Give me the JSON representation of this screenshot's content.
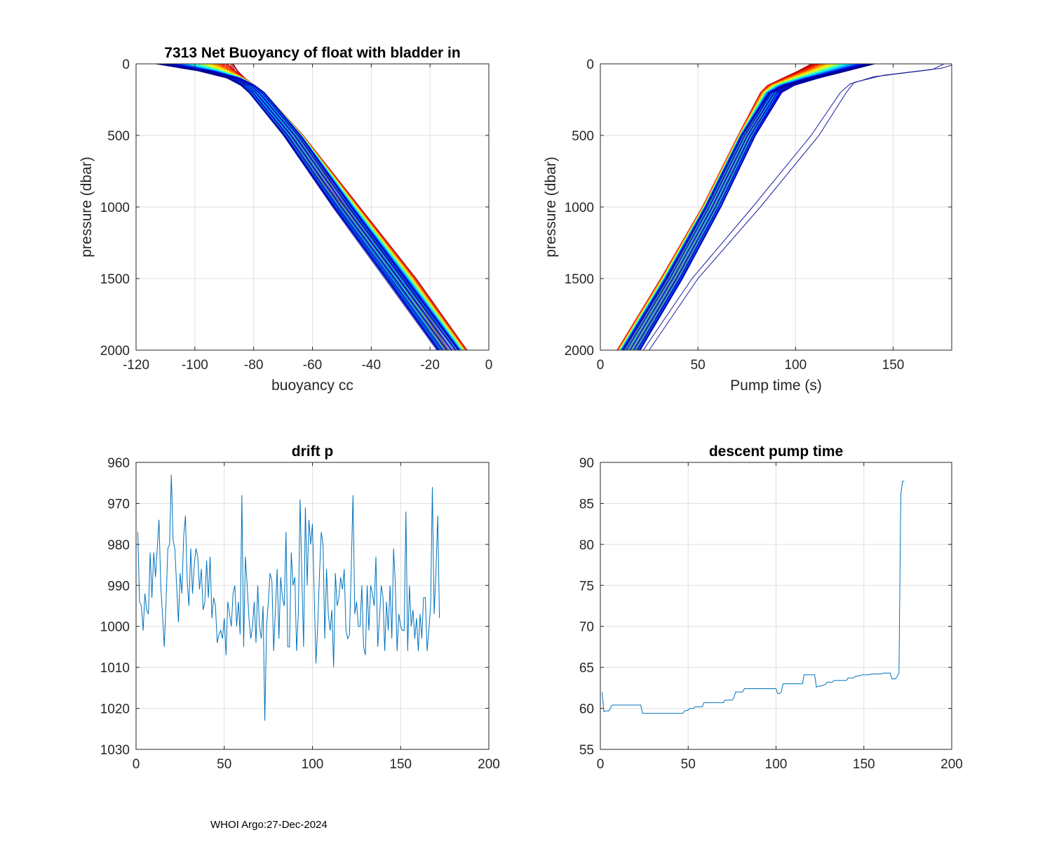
{
  "footer": "WHOI Argo:27-Dec-2024",
  "chart_data": [
    {
      "id": "buoyancy",
      "type": "line",
      "title": "7313 Net Buoyancy of float with bladder in",
      "xlabel": "buoyancy cc",
      "ylabel": "pressure (dbar)",
      "xlim": [
        -120,
        0
      ],
      "ylim": [
        0,
        2000
      ],
      "y_reversed": true,
      "xticks": [
        -120,
        -100,
        -80,
        -60,
        -40,
        -20,
        0
      ],
      "xtick_labels": [
        "-120",
        "-100",
        "-80",
        "-60",
        "-40",
        "-20",
        "0"
      ],
      "yticks": [
        0,
        500,
        1000,
        1500,
        2000
      ],
      "ytick_labels": [
        "0",
        "500",
        "1000",
        "1500",
        "2000"
      ],
      "grid": true,
      "colormap": "jet",
      "profile_count": 175,
      "profile_shape": {
        "pressure": [
          0,
          50,
          100,
          150,
          200,
          500,
          1000,
          1500,
          2000
        ],
        "x_first_profile": [
          -88,
          -87,
          -85,
          -82,
          -79,
          -66,
          -47,
          -28,
          -11
        ],
        "x_last_profile": [
          -112,
          -97,
          -87,
          -82,
          -79,
          -67,
          -50,
          -32,
          -14
        ],
        "spread": 4
      }
    },
    {
      "id": "pumptime",
      "type": "line",
      "title": "",
      "xlabel": "Pump time (s)",
      "ylabel": "pressure (dbar)",
      "xlim": [
        0,
        180
      ],
      "ylim": [
        0,
        2000
      ],
      "y_reversed": true,
      "xticks": [
        0,
        50,
        100,
        150
      ],
      "xtick_labels": [
        "0",
        "50",
        "100",
        "150"
      ],
      "yticks": [
        0,
        500,
        1000,
        1500,
        2000
      ],
      "ytick_labels": [
        "0",
        "500",
        "1000",
        "1500",
        "2000"
      ],
      "grid": true,
      "colormap": "jet",
      "profile_count": 175,
      "profile_shape": {
        "pressure": [
          0,
          50,
          100,
          150,
          200,
          500,
          1000,
          1500,
          2000
        ],
        "x_first_profile": [
          108,
          102,
          95,
          88,
          85,
          74,
          56,
          35,
          13
        ],
        "x_last_profile": [
          140,
          125,
          110,
          97,
          90,
          76,
          58,
          38,
          16
        ],
        "spread": 5
      },
      "outlier_series": [
        {
          "name": "outlier-1",
          "color": "#1a1aa0",
          "pressure": [
            0,
            30,
            80,
            130,
            200,
            500,
            1000,
            1500,
            2000
          ],
          "x": [
            182,
            175,
            145,
            130,
            126,
            112,
            82,
            50,
            25
          ]
        },
        {
          "name": "outlier-2",
          "color": "#1a1aa0",
          "pressure": [
            0,
            40,
            90,
            140,
            200,
            500,
            1000,
            1500,
            2000
          ],
          "x": [
            176,
            170,
            140,
            128,
            123,
            108,
            78,
            47,
            22
          ]
        }
      ]
    },
    {
      "id": "drift",
      "type": "line",
      "title": "drift p",
      "xlabel": "",
      "ylabel": "",
      "xlim": [
        0,
        200
      ],
      "ylim": [
        960,
        1030
      ],
      "y_reversed": true,
      "xticks": [
        0,
        50,
        100,
        150,
        200
      ],
      "xtick_labels": [
        "0",
        "50",
        "100",
        "150",
        "200"
      ],
      "yticks": [
        960,
        970,
        980,
        990,
        1000,
        1010,
        1020,
        1030
      ],
      "ytick_labels": [
        "960",
        "970",
        "980",
        "990",
        "1000",
        "1010",
        "1020",
        "1030"
      ],
      "grid": true,
      "color": "#0072bd",
      "x_start": 1,
      "values": [
        977,
        994,
        995,
        1001,
        992,
        996,
        997,
        982,
        993,
        982,
        988,
        981,
        974,
        990,
        997,
        1005,
        994,
        981,
        980,
        963,
        979,
        981,
        990,
        999,
        987,
        992,
        978,
        973,
        989,
        995,
        981,
        992,
        985,
        981,
        983,
        991,
        986,
        996,
        994,
        984,
        993,
        983,
        998,
        993,
        995,
        1004,
        1002,
        1001,
        1003,
        998,
        1007,
        994,
        997,
        1000,
        992,
        990,
        1000,
        994,
        1002,
        968,
        1005,
        983,
        990,
        998,
        1003,
        1000,
        994,
        1004,
        990,
        1000,
        1003,
        995,
        1023,
        1000,
        994,
        987,
        989,
        1006,
        996,
        986,
        1003,
        988,
        993,
        995,
        977,
        1005,
        1005,
        982,
        990,
        988,
        1006,
        997,
        969,
        988,
        1005,
        971,
        990,
        974,
        980,
        975,
        992,
        1009,
        1000,
        987,
        977,
        980,
        1003,
        986,
        997,
        1001,
        996,
        1010,
        987,
        995,
        993,
        988,
        991,
        986,
        1001,
        1003,
        1002,
        986,
        968,
        997,
        994,
        1000,
        1000,
        990,
        1005,
        1007,
        990,
        1001,
        990,
        992,
        995,
        983,
        1005,
        998,
        990,
        993,
        1006,
        994,
        1001,
        990,
        1003,
        981,
        990,
        1006,
        997,
        1000,
        1001,
        1001,
        972,
        1006,
        990,
        1000,
        996,
        1003,
        998,
        1006,
        997,
        1003,
        993,
        993,
        1006,
        1001,
        995,
        966,
        997,
        987,
        973,
        998
      ]
    },
    {
      "id": "descent",
      "type": "line",
      "title": "descent pump time",
      "xlabel": "",
      "ylabel": "",
      "xlim": [
        0,
        200
      ],
      "ylim": [
        55,
        90
      ],
      "y_reversed": false,
      "xticks": [
        0,
        50,
        100,
        150,
        200
      ],
      "xtick_labels": [
        "0",
        "50",
        "100",
        "150",
        "200"
      ],
      "yticks": [
        55,
        60,
        65,
        70,
        75,
        80,
        85,
        90
      ],
      "ytick_labels": [
        "55",
        "60",
        "65",
        "70",
        "75",
        "80",
        "85",
        "90"
      ],
      "grid": true,
      "color": "#0072bd",
      "x": [
        1,
        2,
        3,
        5,
        6,
        7,
        8,
        23,
        24,
        47,
        48,
        50,
        51,
        53,
        54,
        58,
        59,
        70,
        71,
        75,
        76,
        77,
        78,
        81,
        82,
        100,
        101,
        102,
        103,
        104,
        115,
        116,
        121,
        122,
        123,
        124,
        125,
        128,
        129,
        132,
        133,
        140,
        141,
        144,
        145,
        148,
        149,
        153,
        154,
        160,
        161,
        165,
        166,
        168,
        169,
        170,
        171,
        172,
        173
      ],
      "values": [
        62,
        59.6,
        59.7,
        59.7,
        60.2,
        60.4,
        60.4,
        60.4,
        59.4,
        59.4,
        59.7,
        59.8,
        60.0,
        60.0,
        60.2,
        60.2,
        60.7,
        60.7,
        61.0,
        61.0,
        61.3,
        62.0,
        62.0,
        62.0,
        62.4,
        62.4,
        61.8,
        61.8,
        62.0,
        63.0,
        63.0,
        64.1,
        64.1,
        64.1,
        62.6,
        62.7,
        62.7,
        62.9,
        63.2,
        63.2,
        63.4,
        63.4,
        63.7,
        63.7,
        63.9,
        64.0,
        64.1,
        64.1,
        64.2,
        64.2,
        64.3,
        64.3,
        63.6,
        63.6,
        63.9,
        64.3,
        86.0,
        87.7,
        87.7
      ]
    }
  ]
}
